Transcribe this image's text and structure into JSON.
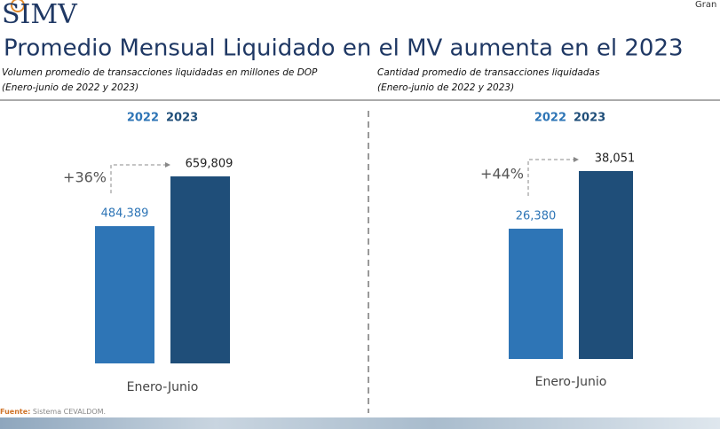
{
  "logo": "SIMV",
  "corner_text": "Gran",
  "title": "Promedio Mensual Liquidado en el MV aumenta en el 2023",
  "source_label": "Fuente:",
  "source": "Sistema CEVALDOM.",
  "chart_data": [
    {
      "type": "bar",
      "subtitle": [
        "Volumen promedio de transacciones liquidadas en millones de DOP",
        "(Enero-junio de 2022 y 2023)"
      ],
      "categories": [
        "Enero-Junio"
      ],
      "series": [
        {
          "name": "2022",
          "color": "#2e75b6",
          "values": [
            484389
          ],
          "value_labels": [
            "484,389"
          ]
        },
        {
          "name": "2023",
          "color": "#1f4e79",
          "values": [
            659809
          ],
          "value_labels": [
            "659,809"
          ]
        }
      ],
      "annotation": "+36%"
    },
    {
      "type": "bar",
      "subtitle": [
        "Cantidad promedio de transacciones liquidadas",
        "(Enero-junio de 2022 y 2023)"
      ],
      "categories": [
        "Enero-Junio"
      ],
      "series": [
        {
          "name": "2022",
          "color": "#2e75b6",
          "values": [
            26380
          ],
          "value_labels": [
            "26,380"
          ]
        },
        {
          "name": "2023",
          "color": "#1f4e79",
          "values": [
            38051
          ],
          "value_labels": [
            "38,051"
          ]
        }
      ],
      "annotation": "+44%"
    }
  ]
}
